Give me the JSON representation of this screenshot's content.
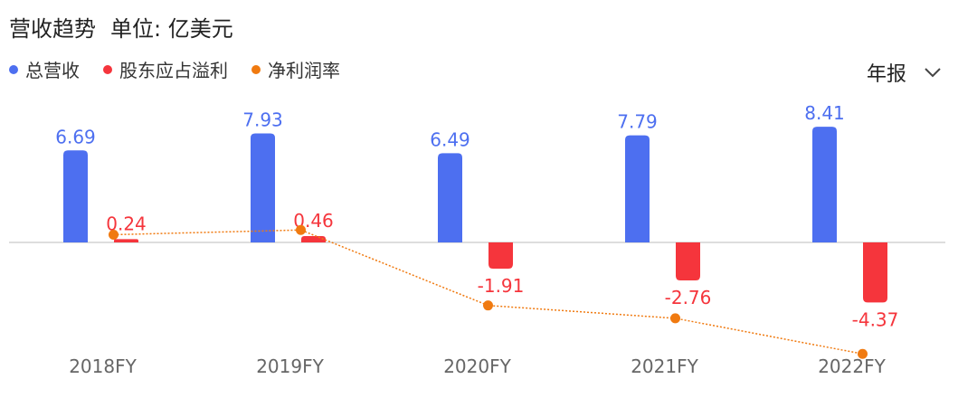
{
  "header": {
    "title": "营收趋势",
    "unit": "单位: 亿美元"
  },
  "period_selector": {
    "label": "年报",
    "icon": "chevron-down-icon"
  },
  "colors": {
    "revenue": "#4d6ff0",
    "profit": "#f5353c",
    "margin": "#f07a10",
    "axis": "#dddddd",
    "xlabel": "#666666"
  },
  "chart_data": {
    "type": "bar",
    "categories": [
      "2018FY",
      "2019FY",
      "2020FY",
      "2021FY",
      "2022FY"
    ],
    "series": [
      {
        "name": "总营收",
        "kind": "bar",
        "values": [
          6.69,
          7.93,
          6.49,
          7.79,
          8.41
        ],
        "labels": [
          "6.69",
          "7.93",
          "6.49",
          "7.79",
          "8.41"
        ]
      },
      {
        "name": "股东应占溢利",
        "kind": "bar",
        "values": [
          0.24,
          0.46,
          -1.91,
          -2.76,
          -4.37
        ],
        "labels": [
          "0.24",
          "0.46",
          "-1.91",
          "-2.76",
          "-4.37"
        ]
      },
      {
        "name": "净利润率",
        "kind": "line",
        "values": [
          3.6,
          5.8,
          -29.4,
          -35.4,
          -52.0
        ]
      }
    ]
  }
}
